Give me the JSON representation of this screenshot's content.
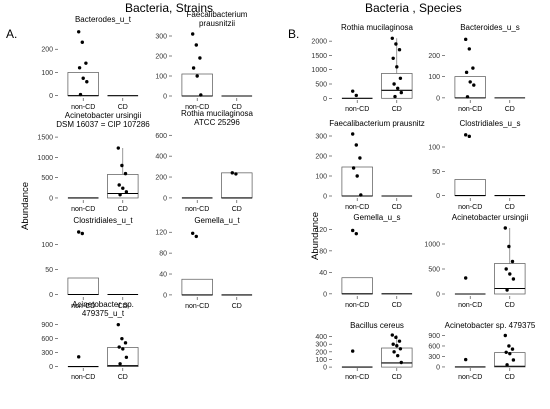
{
  "figure": {
    "left_title": "Bacteria, Strains",
    "right_title": "Bacteria ,  Species",
    "left_letter": "A.",
    "right_letter": "B.",
    "ylabel": "Abundance"
  },
  "chart_data": [
    {
      "type": "box",
      "group": "A",
      "title": "Bacterodes_u_t",
      "categories": [
        "non-CD",
        "CD"
      ],
      "yticks": [
        0,
        100,
        200
      ],
      "ylim": [
        -10,
        300
      ],
      "series": [
        {
          "name": "non-CD",
          "box": [
            0,
            0,
            0,
            0,
            0
          ],
          "points": []
        },
        {
          "name": "CD",
          "box": [
            0,
            0,
            0,
            0,
            0
          ],
          "points": []
        }
      ],
      "first_box": [
        0,
        0,
        0,
        100,
        100
      ],
      "first_points": [
        275,
        230,
        140,
        120,
        75,
        60,
        5
      ]
    },
    {
      "type": "box",
      "group": "A",
      "title": "Faecalibacterium\nprausnitzii",
      "categories": [
        "non-CD",
        "CD"
      ],
      "yticks": [
        0,
        100,
        200,
        300
      ],
      "ylim": [
        -10,
        330
      ],
      "first_box": [
        0,
        0,
        0,
        110,
        110
      ],
      "first_points": [
        310,
        255,
        190,
        140,
        100,
        5
      ],
      "second_box": [
        0,
        0,
        0,
        0,
        0
      ],
      "second_points": []
    },
    {
      "type": "box",
      "group": "A",
      "title": "Acinetobacter ursingii\nDSM 16037 = CIP 107286",
      "categories": [
        "non-CD",
        "CD"
      ],
      "yticks": [
        0,
        500,
        1000,
        1500
      ],
      "ylim": [
        -50,
        1650
      ],
      "first_box": [
        0,
        0,
        0,
        0,
        0
      ],
      "first_points": [],
      "second_box": [
        0,
        0,
        110,
        580,
        1230
      ],
      "second_points": [
        1230,
        800,
        600,
        320,
        240,
        150,
        80
      ]
    },
    {
      "type": "box",
      "group": "A",
      "title": "Rothia mucilaginosa\nATCC 25296",
      "categories": [
        "non-CD",
        "CD"
      ],
      "yticks": [
        0,
        200,
        400,
        600
      ],
      "ylim": [
        -20,
        660
      ],
      "first_box": [
        0,
        0,
        0,
        0,
        0
      ],
      "first_points": [],
      "second_box": [
        0,
        0,
        0,
        240,
        240
      ],
      "second_points": [
        240,
        230
      ]
    },
    {
      "type": "box",
      "group": "A",
      "title": "Clostridiales_u_t",
      "categories": [
        "non-CD",
        "CD"
      ],
      "yticks": [
        0,
        50,
        100
      ],
      "ylim": [
        -5,
        135
      ],
      "first_box": [
        0,
        0,
        0,
        33,
        33
      ],
      "first_points": [
        125,
        122
      ],
      "second_box": [
        0,
        0,
        0,
        0,
        0
      ],
      "second_points": []
    },
    {
      "type": "box",
      "group": "A",
      "title": "Gemella_u_t",
      "categories": [
        "non-CD",
        "CD"
      ],
      "yticks": [
        0,
        40,
        80,
        120
      ],
      "ylim": [
        -4,
        130
      ],
      "first_box": [
        0,
        0,
        0,
        30,
        30
      ],
      "first_points": [
        118,
        112
      ],
      "second_box": [
        0,
        0,
        0,
        0,
        0
      ],
      "second_points": []
    },
    {
      "type": "box",
      "group": "A",
      "title": "Acinetobacter sp.\n479375_u_t",
      "categories": [
        "non-CD",
        "CD"
      ],
      "yticks": [
        0,
        300,
        600,
        900
      ],
      "ylim": [
        -30,
        1000
      ],
      "first_box": [
        0,
        0,
        0,
        0,
        0
      ],
      "first_points": [
        210
      ],
      "second_box": [
        0,
        0,
        20,
        410,
        410
      ],
      "second_points": [
        900,
        600,
        510,
        420,
        380,
        200,
        60
      ]
    },
    {
      "type": "box",
      "group": "B",
      "title": "Rothia mucilaginosa",
      "categories": [
        "non-CD",
        "CD"
      ],
      "yticks": [
        0,
        500,
        1000,
        1500,
        2000
      ],
      "ylim": [
        -60,
        2250
      ],
      "first_box": [
        0,
        0,
        0,
        0,
        0
      ],
      "first_points": [
        250,
        100
      ],
      "second_box": [
        0,
        0,
        280,
        870,
        2100
      ],
      "second_points": [
        2100,
        1900,
        1700,
        1400,
        1100,
        700,
        500,
        350,
        200,
        60
      ]
    },
    {
      "type": "box",
      "group": "B",
      "title": "Bacteroides_u_s",
      "categories": [
        "non-CD",
        "CD"
      ],
      "yticks": [
        0,
        100,
        200
      ],
      "ylim": [
        -10,
        300
      ],
      "first_box": [
        0,
        0,
        0,
        100,
        100
      ],
      "first_points": [
        275,
        230,
        140,
        120,
        75,
        60,
        5
      ],
      "second_box": [
        0,
        0,
        0,
        0,
        0
      ],
      "second_points": []
    },
    {
      "type": "box",
      "group": "B",
      "title": "Faecalibacterium prausnitz",
      "categories": [
        "non-CD",
        "CD"
      ],
      "yticks": [
        0,
        100,
        200,
        300
      ],
      "ylim": [
        -10,
        330
      ],
      "first_box": [
        0,
        0,
        0,
        145,
        145
      ],
      "first_points": [
        310,
        255,
        190,
        140,
        100,
        5
      ],
      "second_box": [
        0,
        0,
        0,
        0,
        0
      ],
      "second_points": []
    },
    {
      "type": "box",
      "group": "B",
      "title": "Clostridiales_u_s",
      "categories": [
        "non-CD",
        "CD"
      ],
      "yticks": [
        0,
        50,
        100
      ],
      "ylim": [
        -5,
        135
      ],
      "first_box": [
        0,
        0,
        0,
        33,
        33
      ],
      "first_points": [
        125,
        122
      ],
      "second_box": [
        0,
        0,
        0,
        0,
        0
      ],
      "second_points": []
    },
    {
      "type": "box",
      "group": "B",
      "title": "Gemella_u_s",
      "categories": [
        "non-CD",
        "CD"
      ],
      "yticks": [
        0,
        40,
        80,
        120
      ],
      "ylim": [
        -4,
        130
      ],
      "first_box": [
        0,
        0,
        0,
        30,
        30
      ],
      "first_points": [
        118,
        112
      ],
      "second_box": [
        0,
        0,
        0,
        0,
        0
      ],
      "second_points": []
    },
    {
      "type": "box",
      "group": "B",
      "title": "Acinetobacter ursingii",
      "categories": [
        "non-CD",
        "CD"
      ],
      "yticks": [
        0,
        500,
        1000
      ],
      "ylim": [
        -40,
        1400
      ],
      "first_box": [
        0,
        0,
        0,
        0,
        0
      ],
      "first_points": [
        320
      ],
      "second_box": [
        0,
        0,
        110,
        610,
        1320
      ],
      "second_points": [
        1320,
        950,
        650,
        500,
        400,
        300,
        80
      ]
    },
    {
      "type": "box",
      "group": "B",
      "title": "Bacillus cereus",
      "categories": [
        "non-CD",
        "CD"
      ],
      "yticks": [
        0,
        100,
        200,
        300,
        400
      ],
      "ylim": [
        -12,
        460
      ],
      "first_box": [
        0,
        0,
        0,
        0,
        0
      ],
      "first_points": [
        210
      ],
      "second_box": [
        0,
        0,
        55,
        250,
        420
      ],
      "second_points": [
        420,
        390,
        340,
        300,
        280,
        240,
        200,
        150,
        60
      ]
    },
    {
      "type": "box",
      "group": "B",
      "title": "Acinetobacter sp. 479375",
      "categories": [
        "non-CD",
        "CD"
      ],
      "yticks": [
        0,
        300,
        600,
        900
      ],
      "ylim": [
        -30,
        1000
      ],
      "first_box": [
        0,
        0,
        0,
        0,
        0
      ],
      "first_points": [
        210
      ],
      "second_box": [
        0,
        0,
        20,
        410,
        410
      ],
      "second_points": [
        900,
        600,
        510,
        420,
        380,
        200,
        60
      ]
    }
  ]
}
